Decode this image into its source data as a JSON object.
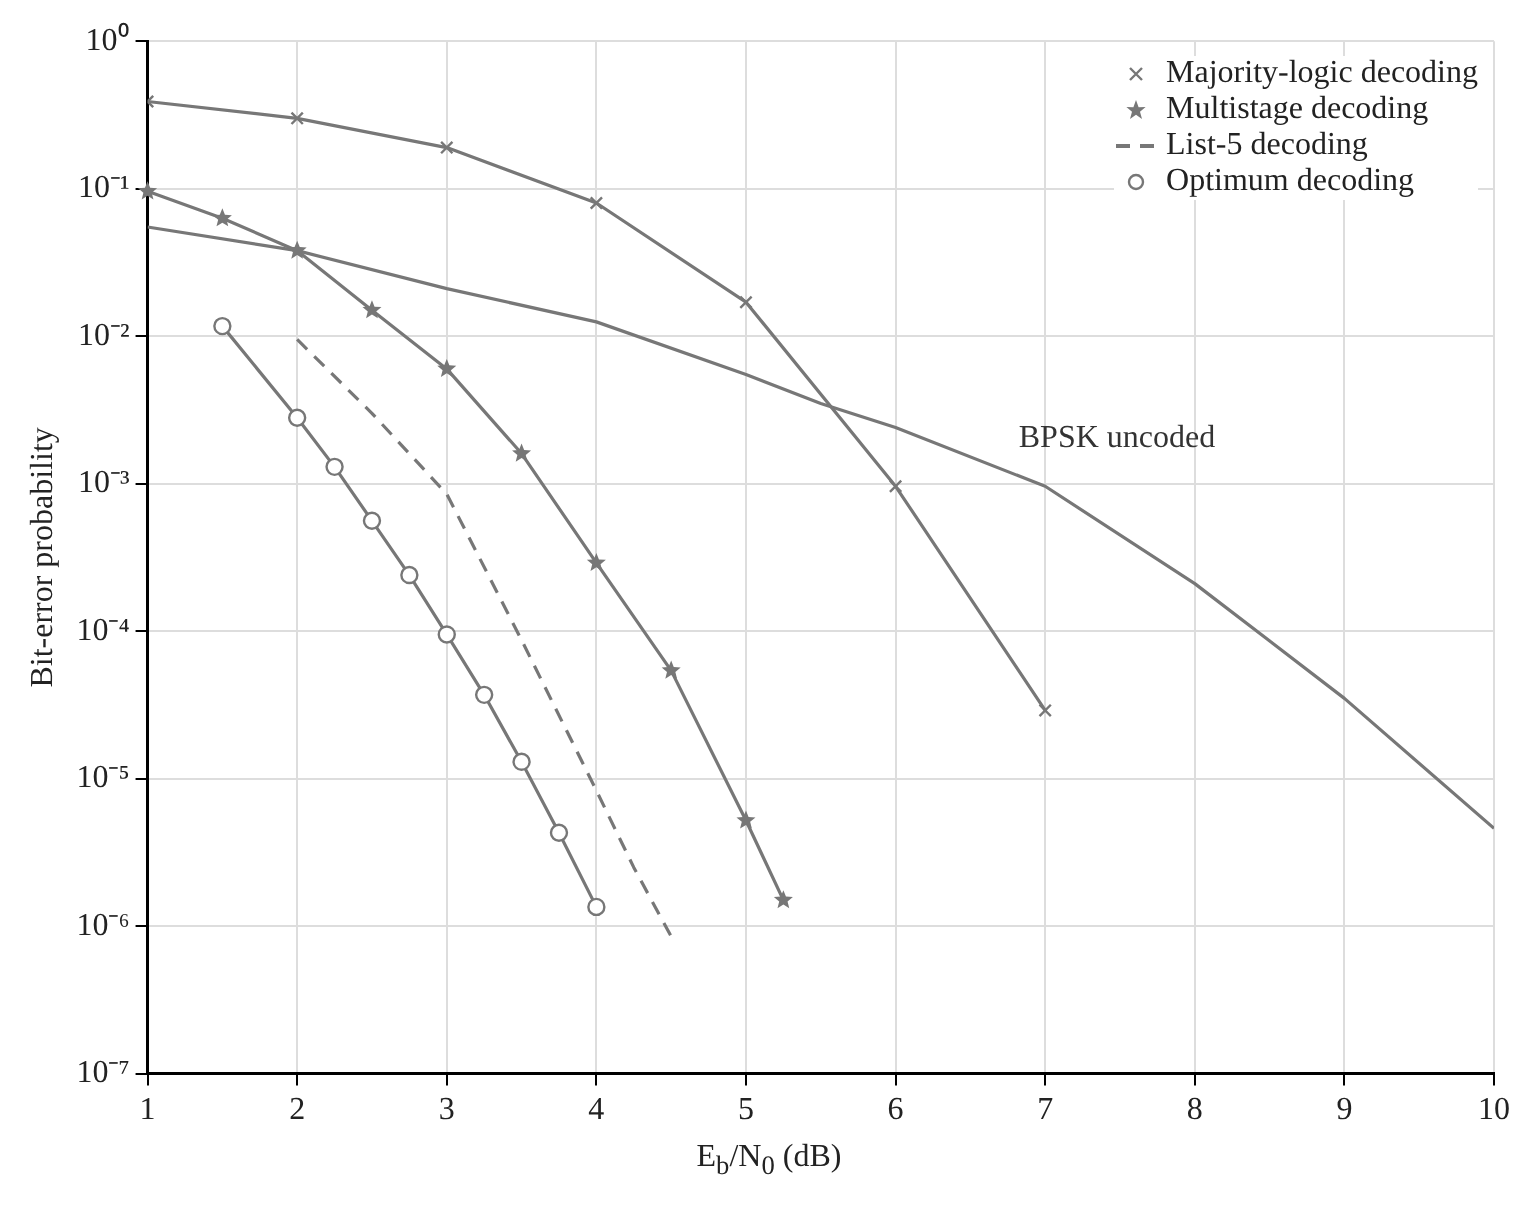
{
  "chart_data": {
    "type": "line",
    "xlabel": "E$_{b}$/N$_{0}$ (dB)",
    "ylabel": "Bit-error probability",
    "log": "y",
    "xlim": [
      1,
      10
    ],
    "xticks": [
      1,
      2,
      3,
      4,
      5,
      6,
      7,
      8,
      9,
      10
    ],
    "ylim": [
      1e-07,
      1
    ],
    "yticks": [
      {
        "value": 1e-07,
        "label": "10⁻⁷"
      },
      {
        "value": 1e-06,
        "label": "10⁻⁶"
      },
      {
        "value": 1e-05,
        "label": "10⁻⁵"
      },
      {
        "value": 0.0001,
        "label": "10⁻⁴"
      },
      {
        "value": 0.001,
        "label": "10⁻³"
      },
      {
        "value": 0.01,
        "label": "10⁻²"
      },
      {
        "value": 0.1,
        "label": "10⁻¹"
      },
      {
        "value": 1,
        "label": "10⁰"
      }
    ],
    "grid": true,
    "legend": "top right",
    "annotations": [
      "BPSK uncoded"
    ],
    "series": [
      {
        "name": "Majority-logic decoding",
        "color": "#777777",
        "marker": "cross",
        "line_style": "solid",
        "x": [
          1,
          2,
          3,
          4,
          5,
          6,
          7
        ],
        "values": [
          0.39,
          0.3,
          0.19,
          0.08,
          0.017,
          0.00096,
          2.9e-05
        ]
      },
      {
        "name": "Multistage decoding",
        "color": "#777777",
        "marker": "star",
        "line_style": "solid",
        "x": [
          1,
          1.5,
          2,
          2.5,
          3,
          3.5,
          4,
          4.5,
          5,
          5.25
        ],
        "values": [
          0.096,
          0.063,
          0.038,
          0.015,
          0.006,
          0.0016,
          0.00029,
          5.4e-05,
          5.2e-06,
          1.5e-06
        ]
      },
      {
        "name": "List-5 decoding",
        "color": "#777777",
        "marker": "none",
        "line_style": "dashed",
        "x": [
          2,
          2.5,
          3,
          3.5,
          4,
          4.25,
          4.5
        ],
        "values": [
          0.0095,
          0.003,
          0.00085,
          8.7e-05,
          8.3e-06,
          2.5e-06,
          8.5e-07
        ]
      },
      {
        "name": "Optimum decoding",
        "color": "#777777",
        "marker": "circle",
        "line_style": "solid",
        "x": [
          1.5,
          2,
          2.25,
          2.5,
          2.75,
          3,
          3.25,
          3.5,
          3.75,
          4
        ],
        "values": [
          0.0117,
          0.0028,
          0.0013,
          0.00056,
          0.00024,
          9.5e-05,
          3.7e-05,
          1.3e-05,
          4.3e-06,
          1.35e-06
        ]
      },
      {
        "color": "#777777",
        "marker": "none",
        "line_style": "solid",
        "x": [
          1,
          2,
          3,
          4,
          5,
          5.5,
          6,
          7,
          8,
          9,
          10
        ],
        "values": [
          0.055,
          0.038,
          0.021,
          0.0125,
          0.0055,
          0.0035,
          0.0024,
          0.00096,
          0.00021,
          3.5e-05,
          4.6e-06
        ]
      }
    ]
  }
}
